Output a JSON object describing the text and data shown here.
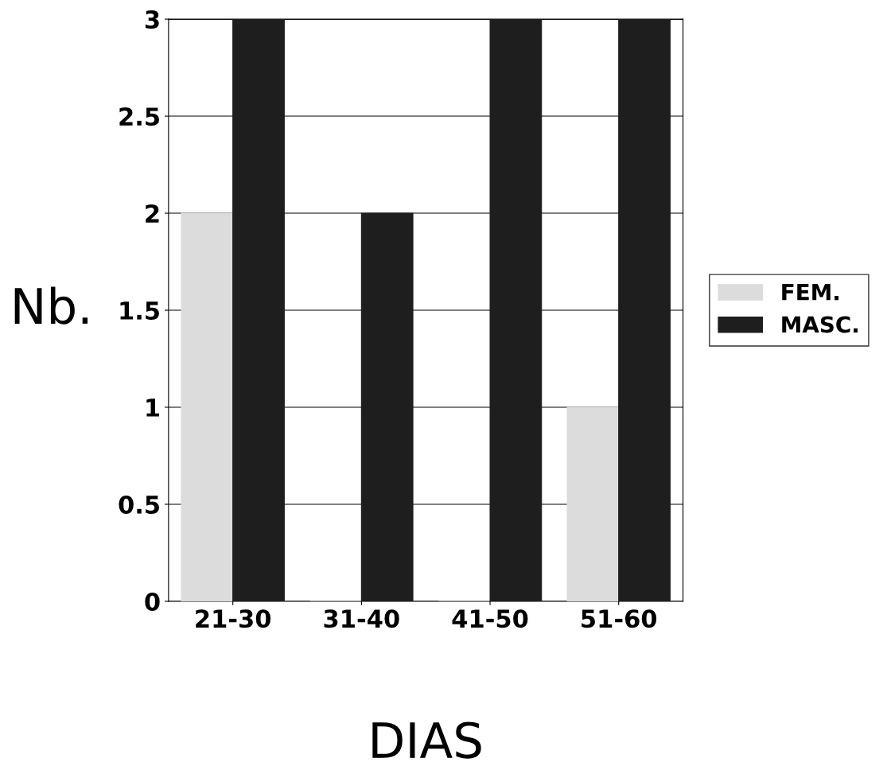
{
  "chart_data": {
    "type": "bar",
    "xlabel": "DIAS",
    "ylabel": "Nb.",
    "categories": [
      "21-30",
      "31-40",
      "41-50",
      "51-60"
    ],
    "series": [
      {
        "name": "FEM.",
        "color": "#dcdcdc",
        "values": [
          2,
          0,
          0,
          1
        ]
      },
      {
        "name": "MASC.",
        "color": "#1e1e1e",
        "values": [
          3,
          2,
          3,
          3
        ]
      }
    ],
    "ylim": [
      0,
      3
    ],
    "yticks": [
      0,
      0.5,
      1,
      1.5,
      2,
      2.5,
      3
    ],
    "grid": "y",
    "legend": "right"
  }
}
